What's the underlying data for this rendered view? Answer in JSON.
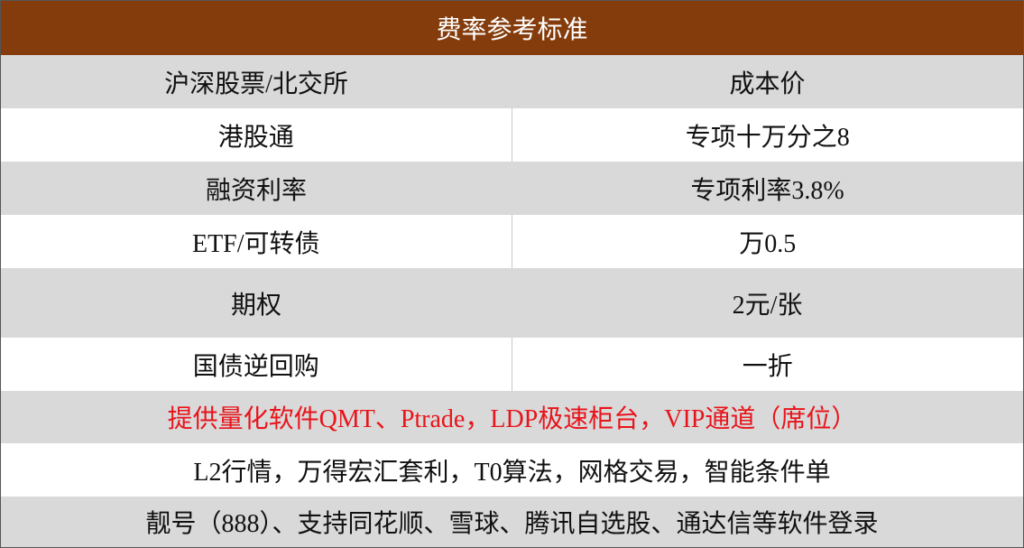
{
  "header": {
    "title": "费率参考标准"
  },
  "table": {
    "rows": [
      [
        "沪深股票/北交所",
        "成本价"
      ],
      [
        "港股通",
        "专项十万分之8"
      ],
      [
        "融资利率",
        "专项利率3.8%"
      ],
      [
        "ETF/可转债",
        "万0.5"
      ],
      [
        "期权",
        "2元/张"
      ],
      [
        "国债逆回购",
        "一折"
      ]
    ]
  },
  "notes": [
    "提供量化软件QMT、Ptrade，LDP极速柜台，VIP通道（席位）",
    "L2行情，万得宏汇套利，T0算法，网格交易，智能条件单",
    "靓号（888）、支持同花顺、雪球、腾讯自选股、通达信等软件登录"
  ]
}
